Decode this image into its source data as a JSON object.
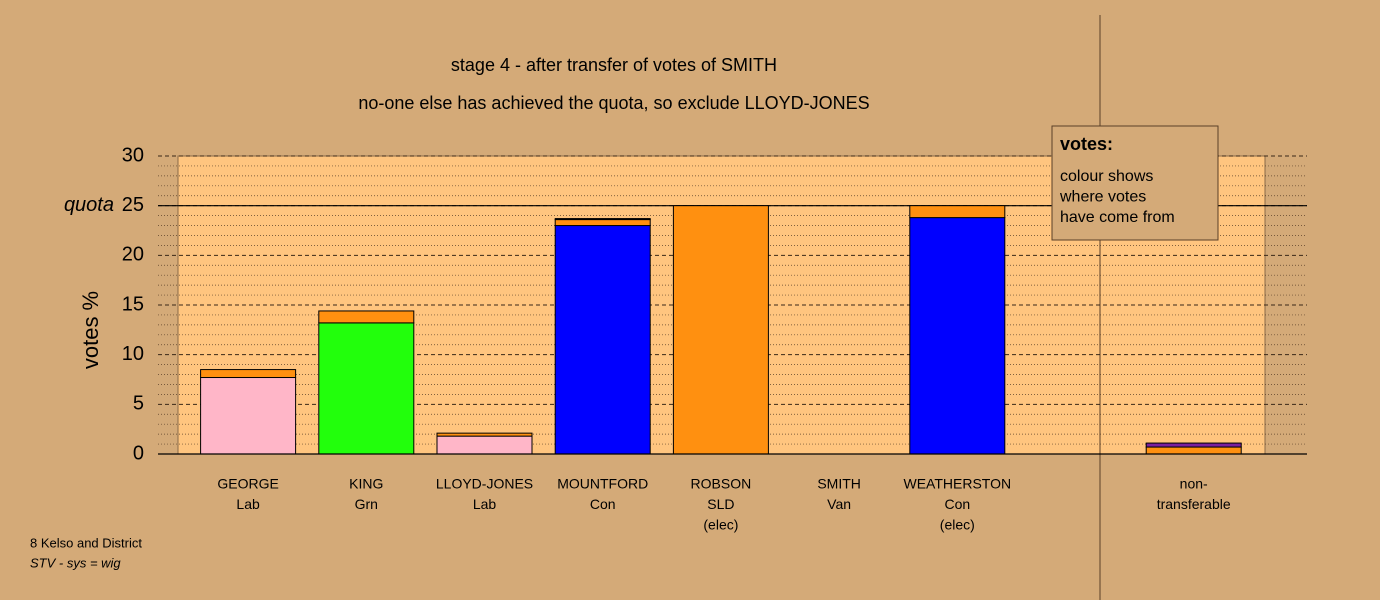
{
  "chart_data": {
    "type": "stacked-bar",
    "title": "stage 4 - after transfer of votes of SMITH",
    "subtitle": "no-one else has achieved the quota, so exclude LLOYD-JONES",
    "ylabel": "votes %",
    "quota_label": "quota",
    "quota": 25,
    "categories": [
      [
        "GEORGE",
        "Lab"
      ],
      [
        "KING",
        "Grn"
      ],
      [
        "LLOYD-JONES",
        "Lab"
      ],
      [
        "MOUNTFORD",
        "Con"
      ],
      [
        "ROBSON",
        "SLD",
        "(elec)"
      ],
      [
        "SMITH",
        "Van"
      ],
      [
        "WEATHERSTON",
        "Con",
        "(elec)"
      ],
      null,
      [
        "non-",
        "transferable"
      ]
    ],
    "series": [
      {
        "color": "#ffb6c8",
        "values": [
          7.7,
          null,
          1.8,
          null,
          null,
          null,
          null,
          null,
          null
        ]
      },
      {
        "color": "#22ff0c",
        "values": [
          null,
          13.2,
          null,
          null,
          null,
          null,
          null,
          null,
          null
        ]
      },
      {
        "color": "#0000ff",
        "values": [
          null,
          null,
          null,
          23.0,
          null,
          null,
          23.8,
          null,
          null
        ]
      },
      {
        "color": "#ff9010",
        "values": [
          0.8,
          1.2,
          0.3,
          0.6,
          25,
          0,
          1.2,
          null,
          0.7
        ]
      },
      {
        "color": "#7a1fa0",
        "values": [
          null,
          null,
          null,
          0.1,
          null,
          null,
          null,
          null,
          0.4
        ]
      }
    ],
    "ylim": [
      0,
      30
    ],
    "yticks": [
      0,
      5,
      10,
      15,
      20,
      25,
      30
    ],
    "minor_yticks": [
      1,
      2,
      3,
      4,
      6,
      7,
      8,
      9,
      11,
      12,
      13,
      14,
      16,
      17,
      18,
      19,
      21,
      22,
      23,
      24,
      26,
      27,
      28,
      29
    ],
    "grid": true,
    "legend": {
      "title": "votes:",
      "lines": [
        "colour shows",
        "where votes",
        "have come from"
      ]
    },
    "footnote": "8 Kelso and District",
    "footnote_italic": "STV - sys = wig"
  }
}
